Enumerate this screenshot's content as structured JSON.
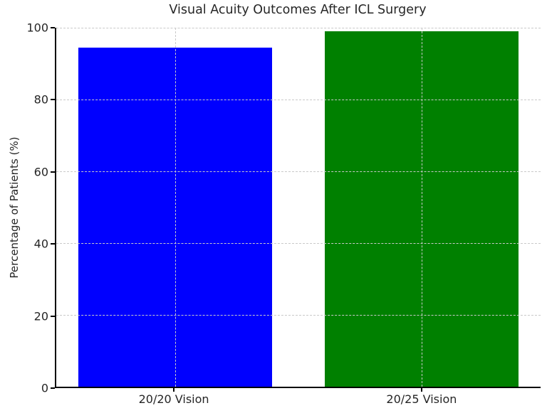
{
  "chart_data": {
    "type": "bar",
    "title": "Visual Acuity Outcomes After ICL Surgery",
    "categories": [
      "20/20 Vision",
      "20/25 Vision"
    ],
    "values": [
      94.5,
      99
    ],
    "bar_colors": [
      "#0000ff",
      "#008000"
    ],
    "xlabel": "",
    "ylabel": "Percentage of Patients (%)",
    "ylim": [
      0,
      100
    ],
    "yticks": [
      0,
      20,
      40,
      60,
      80,
      100
    ],
    "grid": "on",
    "grid_style": "dashed light-gray horizontal lines at y-ticks and vertical lines at bar centers, drawn over bars",
    "legend_position": "none",
    "background_color": "#ffffff",
    "spine_color": "#000000",
    "grid_color": "#c9c9c9",
    "text_color": "#262626"
  }
}
